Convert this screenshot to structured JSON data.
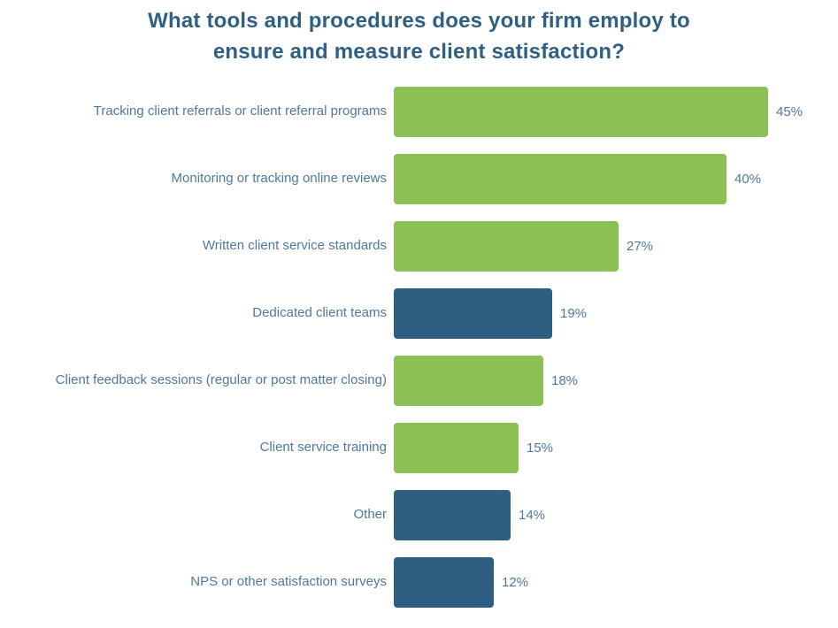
{
  "chart_data": {
    "type": "bar",
    "orientation": "horizontal",
    "title": "What tools and procedures does your firm employ to ensure and measure client satisfaction?",
    "title_lines": [
      "What tools and procedures does your firm employ to",
      "ensure and measure client satisfaction?"
    ],
    "categories": [
      "Tracking client referrals or client referral programs",
      "Monitoring or tracking online reviews",
      "Written client service standards",
      "Dedicated client teams",
      "Client feedback sessions (regular or post matter closing)",
      "Client service training",
      "Other",
      "NPS or other satisfaction surveys"
    ],
    "values": [
      45,
      40,
      27,
      19,
      18,
      15,
      14,
      12
    ],
    "value_labels": [
      "45%",
      "40%",
      "27%",
      "19%",
      "18%",
      "15%",
      "14%",
      "12%"
    ],
    "value_suffix": "%",
    "bar_colors": [
      "green",
      "green",
      "green",
      "blue",
      "green",
      "green",
      "blue",
      "blue"
    ],
    "palette": {
      "green": "#8CC055",
      "blue": "#2E5F82"
    },
    "title_color": "#2F6083",
    "label_color": "#50789E",
    "xlim": [
      0,
      45
    ],
    "grid": false,
    "legend": false,
    "axes_visible": false,
    "background": "#FFFFFF"
  }
}
